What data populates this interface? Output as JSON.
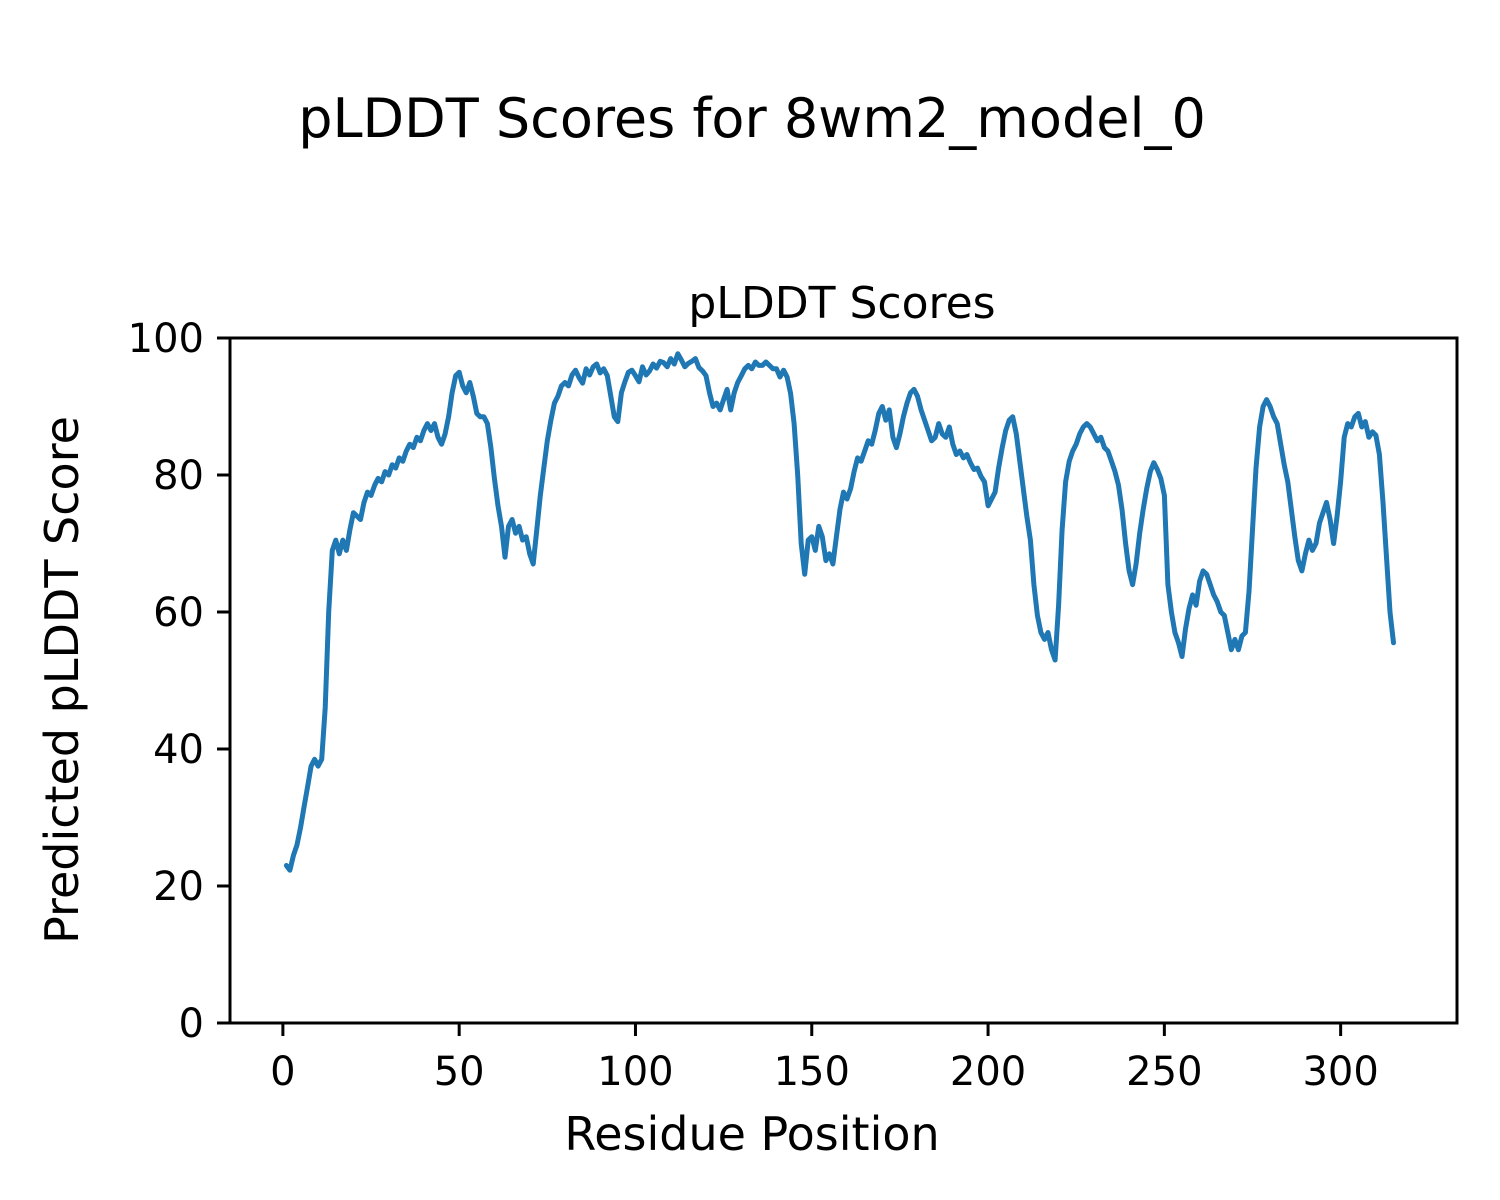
{
  "figure": {
    "suptitle": "pLDDT Scores for 8wm2_model_0",
    "background_color": "#ffffff",
    "text_color": "#000000"
  },
  "chart_data": {
    "type": "line",
    "title": "pLDDT Scores",
    "xlabel": "Residue Position",
    "ylabel": "Predicted pLDDT Score",
    "xlim": [
      -15,
      333
    ],
    "ylim": [
      0,
      100
    ],
    "xticks": [
      0,
      50,
      100,
      150,
      200,
      250,
      300
    ],
    "yticks": [
      0,
      20,
      40,
      60,
      80,
      100
    ],
    "grid": false,
    "legend": "none",
    "line_color": "#1f77b4",
    "spine_color": "#000000",
    "series": [
      {
        "name": "pLDDT",
        "points": [
          [
            1,
            23
          ],
          [
            2,
            22.3
          ],
          [
            3,
            24.5
          ],
          [
            4,
            26
          ],
          [
            5,
            28.5
          ],
          [
            6,
            31.5
          ],
          [
            7,
            34.5
          ],
          [
            8,
            37.5
          ],
          [
            9,
            38.5
          ],
          [
            10,
            37.5
          ],
          [
            11,
            38.5
          ],
          [
            12,
            46
          ],
          [
            13,
            60
          ],
          [
            14,
            69
          ],
          [
            15,
            70.5
          ],
          [
            16,
            68.5
          ],
          [
            17,
            70.5
          ],
          [
            18,
            69
          ],
          [
            19,
            72
          ],
          [
            20,
            74.5
          ],
          [
            21,
            74
          ],
          [
            22,
            73.5
          ],
          [
            23,
            76
          ],
          [
            24,
            77.5
          ],
          [
            25,
            77
          ],
          [
            26,
            78.5
          ],
          [
            27,
            79.5
          ],
          [
            28,
            79
          ],
          [
            29,
            80.5
          ],
          [
            30,
            80
          ],
          [
            31,
            81.5
          ],
          [
            32,
            81
          ],
          [
            33,
            82.5
          ],
          [
            34,
            82
          ],
          [
            35,
            83.5
          ],
          [
            36,
            84.5
          ],
          [
            37,
            84
          ],
          [
            38,
            85.5
          ],
          [
            39,
            85
          ],
          [
            40,
            86.5
          ],
          [
            41,
            87.5
          ],
          [
            42,
            86.5
          ],
          [
            43,
            87.5
          ],
          [
            44,
            85.5
          ],
          [
            45,
            84.5
          ],
          [
            46,
            86
          ],
          [
            47,
            88.5
          ],
          [
            48,
            92
          ],
          [
            49,
            94.5
          ],
          [
            50,
            95
          ],
          [
            51,
            93
          ],
          [
            52,
            92
          ],
          [
            53,
            93.5
          ],
          [
            54,
            91.5
          ],
          [
            55,
            89
          ],
          [
            56,
            88.5
          ],
          [
            57,
            88.5
          ],
          [
            58,
            87.5
          ],
          [
            59,
            84
          ],
          [
            60,
            79.5
          ],
          [
            61,
            75.5
          ],
          [
            62,
            72.5
          ],
          [
            63,
            68
          ],
          [
            64,
            72.5
          ],
          [
            65,
            73.5
          ],
          [
            66,
            71.5
          ],
          [
            67,
            72.5
          ],
          [
            68,
            70.5
          ],
          [
            69,
            71
          ],
          [
            70,
            68.5
          ],
          [
            71,
            67
          ],
          [
            72,
            72
          ],
          [
            73,
            77
          ],
          [
            74,
            81
          ],
          [
            75,
            85
          ],
          [
            76,
            88
          ],
          [
            77,
            90.5
          ],
          [
            78,
            91.5
          ],
          [
            79,
            93
          ],
          [
            80,
            93.5
          ],
          [
            81,
            93
          ],
          [
            82,
            94.6
          ],
          [
            83,
            95.3
          ],
          [
            84,
            94.2
          ],
          [
            85,
            93.4
          ],
          [
            86,
            95.5
          ],
          [
            87,
            94.6
          ],
          [
            88,
            95.8
          ],
          [
            89,
            96.2
          ],
          [
            90,
            94.9
          ],
          [
            91,
            95.5
          ],
          [
            92,
            94.5
          ],
          [
            93,
            91.5
          ],
          [
            94,
            88.5
          ],
          [
            95,
            87.8
          ],
          [
            96,
            92
          ],
          [
            97,
            93.6
          ],
          [
            98,
            95
          ],
          [
            99,
            95.3
          ],
          [
            100,
            94.5
          ],
          [
            101,
            93.6
          ],
          [
            102,
            95.8
          ],
          [
            103,
            94.6
          ],
          [
            104,
            95.2
          ],
          [
            105,
            96.2
          ],
          [
            106,
            95.6
          ],
          [
            107,
            96.6
          ],
          [
            108,
            96.4
          ],
          [
            109,
            95.8
          ],
          [
            110,
            97
          ],
          [
            111,
            96.2
          ],
          [
            112,
            97.7
          ],
          [
            113,
            96.8
          ],
          [
            114,
            95.8
          ],
          [
            115,
            96.3
          ],
          [
            116,
            96.6
          ],
          [
            117,
            97
          ],
          [
            118,
            95.7
          ],
          [
            119,
            95.2
          ],
          [
            120,
            94.5
          ],
          [
            121,
            92
          ],
          [
            122,
            90
          ],
          [
            123,
            90.5
          ],
          [
            124,
            89.5
          ],
          [
            125,
            91
          ],
          [
            126,
            92.5
          ],
          [
            127,
            89.5
          ],
          [
            128,
            92
          ],
          [
            129,
            93.5
          ],
          [
            130,
            94.5
          ],
          [
            131,
            95.5
          ],
          [
            132,
            96
          ],
          [
            133,
            95.5
          ],
          [
            134,
            96.5
          ],
          [
            135,
            96
          ],
          [
            136,
            96
          ],
          [
            137,
            96.5
          ],
          [
            138,
            96
          ],
          [
            139,
            95.5
          ],
          [
            140,
            95.5
          ],
          [
            141,
            94.3
          ],
          [
            142,
            95.3
          ],
          [
            143,
            94.3
          ],
          [
            144,
            91.9
          ],
          [
            145,
            87.5
          ],
          [
            146,
            80
          ],
          [
            147,
            70
          ],
          [
            148,
            65.5
          ],
          [
            149,
            70.5
          ],
          [
            150,
            71
          ],
          [
            151,
            69
          ],
          [
            152,
            72.5
          ],
          [
            153,
            71
          ],
          [
            154,
            67.5
          ],
          [
            155,
            68.5
          ],
          [
            156,
            67
          ],
          [
            157,
            71
          ],
          [
            158,
            75
          ],
          [
            159,
            77.5
          ],
          [
            160,
            76.5
          ],
          [
            161,
            78
          ],
          [
            162,
            80.5
          ],
          [
            163,
            82.5
          ],
          [
            164,
            82
          ],
          [
            165,
            83.5
          ],
          [
            166,
            85
          ],
          [
            167,
            84.5
          ],
          [
            168,
            86.5
          ],
          [
            169,
            89
          ],
          [
            170,
            90
          ],
          [
            171,
            88
          ],
          [
            172,
            89.5
          ],
          [
            173,
            85.5
          ],
          [
            174,
            84
          ],
          [
            175,
            86
          ],
          [
            176,
            88.5
          ],
          [
            177,
            90.5
          ],
          [
            178,
            92
          ],
          [
            179,
            92.5
          ],
          [
            180,
            91.5
          ],
          [
            181,
            89.5
          ],
          [
            182,
            88
          ],
          [
            183,
            86.5
          ],
          [
            184,
            85
          ],
          [
            185,
            85.5
          ],
          [
            186,
            87.5
          ],
          [
            187,
            86
          ],
          [
            188,
            85.5
          ],
          [
            189,
            87
          ],
          [
            190,
            84.5
          ],
          [
            191,
            83
          ],
          [
            192,
            83.5
          ],
          [
            193,
            82.5
          ],
          [
            194,
            83
          ],
          [
            195,
            81.8
          ],
          [
            196,
            80.8
          ],
          [
            197,
            81
          ],
          [
            198,
            79.8
          ],
          [
            199,
            79
          ],
          [
            200,
            75.5
          ],
          [
            201,
            76.5
          ],
          [
            202,
            77.5
          ],
          [
            203,
            81
          ],
          [
            204,
            84
          ],
          [
            205,
            86.5
          ],
          [
            206,
            88
          ],
          [
            207,
            88.5
          ],
          [
            208,
            86
          ],
          [
            209,
            82
          ],
          [
            210,
            78
          ],
          [
            211,
            74
          ],
          [
            212,
            70.5
          ],
          [
            213,
            64
          ],
          [
            214,
            59.5
          ],
          [
            215,
            57
          ],
          [
            216,
            56
          ],
          [
            217,
            57
          ],
          [
            218,
            54.5
          ],
          [
            219,
            53
          ],
          [
            220,
            61
          ],
          [
            221,
            72
          ],
          [
            222,
            79
          ],
          [
            223,
            82
          ],
          [
            224,
            83.5
          ],
          [
            225,
            84.5
          ],
          [
            226,
            86
          ],
          [
            227,
            87
          ],
          [
            228,
            87.5
          ],
          [
            229,
            87
          ],
          [
            230,
            86
          ],
          [
            231,
            85
          ],
          [
            232,
            85.5
          ],
          [
            233,
            84
          ],
          [
            234,
            83.5
          ],
          [
            235,
            82
          ],
          [
            236,
            80.5
          ],
          [
            237,
            78.5
          ],
          [
            238,
            75
          ],
          [
            239,
            70
          ],
          [
            240,
            66
          ],
          [
            241,
            64
          ],
          [
            242,
            67
          ],
          [
            243,
            71.5
          ],
          [
            244,
            75
          ],
          [
            245,
            78
          ],
          [
            246,
            80.5
          ],
          [
            247,
            81.8
          ],
          [
            248,
            80.8
          ],
          [
            249,
            79.5
          ],
          [
            250,
            77
          ],
          [
            251,
            64
          ],
          [
            252,
            60
          ],
          [
            253,
            57
          ],
          [
            254,
            55.5
          ],
          [
            255,
            53.5
          ],
          [
            256,
            57.5
          ],
          [
            257,
            60.5
          ],
          [
            258,
            62.5
          ],
          [
            259,
            61
          ],
          [
            260,
            64.5
          ],
          [
            261,
            66
          ],
          [
            262,
            65.5
          ],
          [
            263,
            64
          ],
          [
            264,
            62.5
          ],
          [
            265,
            61.5
          ],
          [
            266,
            60
          ],
          [
            267,
            59.5
          ],
          [
            268,
            57
          ],
          [
            269,
            54.5
          ],
          [
            270,
            56
          ],
          [
            271,
            54.5
          ],
          [
            272,
            56.5
          ],
          [
            273,
            57
          ],
          [
            274,
            63
          ],
          [
            275,
            72
          ],
          [
            276,
            81
          ],
          [
            277,
            87
          ],
          [
            278,
            90
          ],
          [
            279,
            91
          ],
          [
            280,
            90
          ],
          [
            281,
            88.5
          ],
          [
            282,
            87.5
          ],
          [
            283,
            84.5
          ],
          [
            284,
            81.5
          ],
          [
            285,
            79
          ],
          [
            286,
            75
          ],
          [
            287,
            71
          ],
          [
            288,
            67.5
          ],
          [
            289,
            66
          ],
          [
            290,
            68.5
          ],
          [
            291,
            70.5
          ],
          [
            292,
            69
          ],
          [
            293,
            70
          ],
          [
            294,
            73
          ],
          [
            295,
            74.5
          ],
          [
            296,
            76
          ],
          [
            297,
            73.5
          ],
          [
            298,
            70
          ],
          [
            299,
            74
          ],
          [
            300,
            79
          ],
          [
            301,
            85.5
          ],
          [
            302,
            87.5
          ],
          [
            303,
            87
          ],
          [
            304,
            88.5
          ],
          [
            305,
            89
          ],
          [
            306,
            87
          ],
          [
            307,
            87.8
          ],
          [
            308,
            85.5
          ],
          [
            309,
            86.3
          ],
          [
            310,
            85.8
          ],
          [
            311,
            83
          ],
          [
            312,
            76
          ],
          [
            313,
            68
          ],
          [
            314,
            60
          ],
          [
            315,
            55.5
          ]
        ]
      }
    ]
  }
}
